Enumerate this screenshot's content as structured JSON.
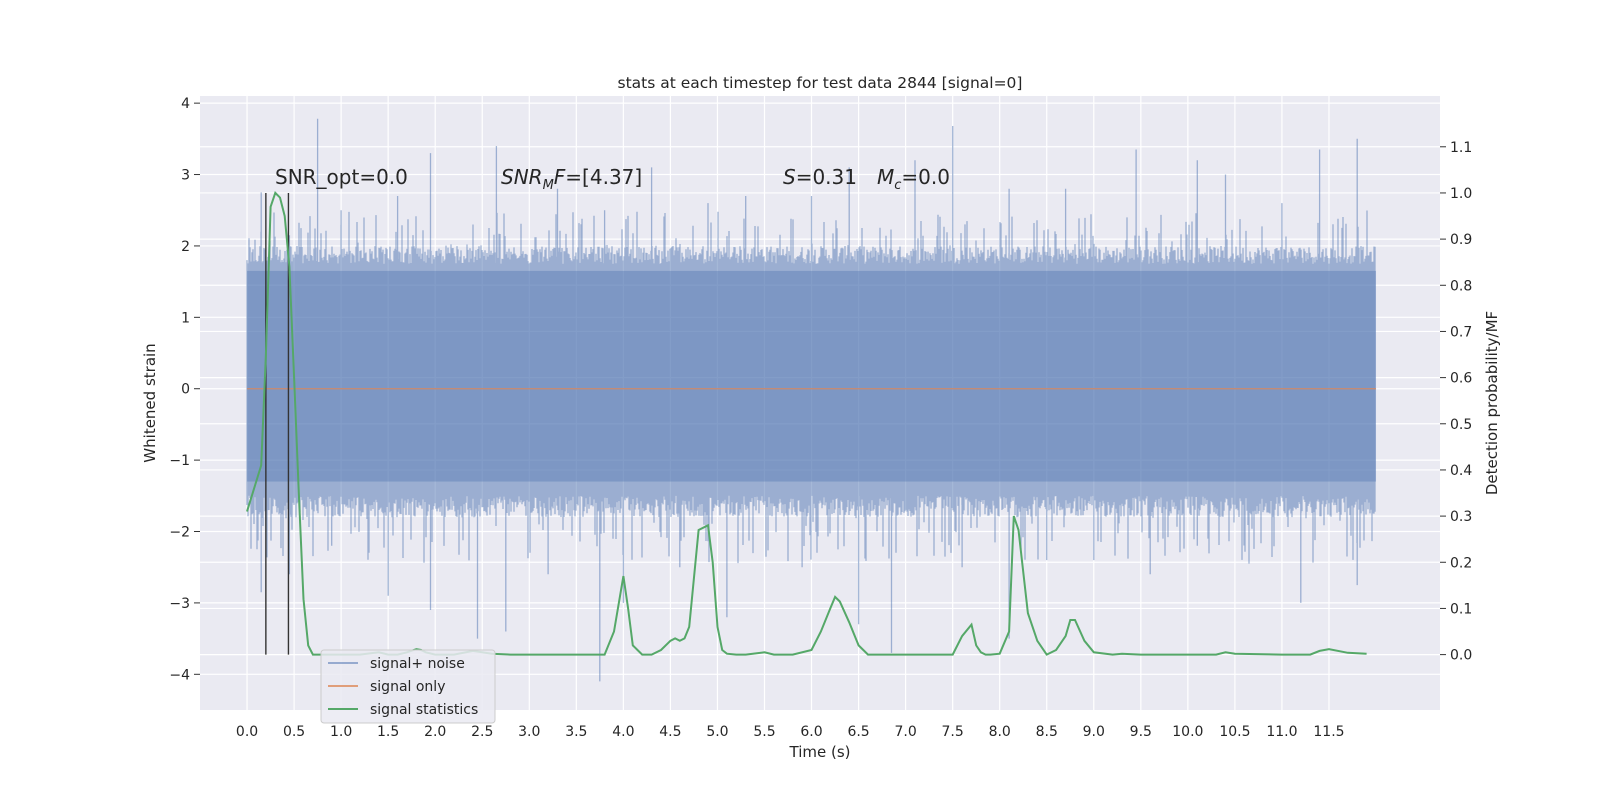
{
  "chart_data": {
    "type": "line",
    "title": "stats at each timestep for test data 2844 [signal=0]",
    "xlabel": "Time (s)",
    "ylabel": "Whitened strain",
    "y2label": "Detection probability/MF",
    "xlim": [
      -0.5,
      12.68
    ],
    "ylim": [
      -4.5,
      4.1
    ],
    "y2lim": [
      -0.12,
      1.21
    ],
    "x_ticks": [
      0.0,
      0.5,
      1.0,
      1.5,
      2.0,
      2.5,
      3.0,
      3.5,
      4.0,
      4.5,
      5.0,
      5.5,
      6.0,
      6.5,
      7.0,
      7.5,
      8.0,
      8.5,
      9.0,
      9.5,
      10.0,
      10.5,
      11.0,
      11.5
    ],
    "x_tick_labels": [
      "0.0",
      "0.5",
      "1.0",
      "1.5",
      "2.0",
      "2.5",
      "3.0",
      "3.5",
      "4.0",
      "4.5",
      "5.0",
      "5.5",
      "6.0",
      "6.5",
      "7.0",
      "7.5",
      "8.0",
      "8.5",
      "9.0",
      "9.5",
      "10.0",
      "10.5",
      "11.0",
      "11.5"
    ],
    "y_ticks": [
      -4,
      -3,
      -2,
      -1,
      0,
      1,
      2,
      3,
      4
    ],
    "y_tick_labels": [
      "−4",
      "−3",
      "−2",
      "−1",
      "0",
      "1",
      "2",
      "3",
      "4"
    ],
    "y2_ticks": [
      0.0,
      0.1,
      0.2,
      0.3,
      0.4,
      0.5,
      0.6,
      0.7,
      0.8,
      0.9,
      1.0,
      1.1
    ],
    "y2_tick_labels": [
      "0.0",
      "0.1",
      "0.2",
      "0.3",
      "0.4",
      "0.5",
      "0.6",
      "0.7",
      "0.8",
      "0.9",
      "1.0",
      "1.1"
    ],
    "grid": true,
    "legend_position": "lower-left",
    "annotations": {
      "snr_opt": "SNR_opt=0.0",
      "snr_mf_base": "SNR",
      "snr_mf_sub": "M",
      "snr_mf_f": "F",
      "snr_mf_rest": "=[4.37]",
      "s_sym": "S",
      "s_val": "=0.31",
      "mc_base": "M",
      "mc_sub": "c",
      "mc_val": "=0.0"
    },
    "series": [
      {
        "name": "signal+ noise",
        "color": "#4c72b0",
        "opacity": 0.5,
        "x_range": [
          0.0,
          12.0
        ],
        "envelope_peaks": [
          [
            0.75,
            3.78
          ],
          [
            0.15,
            2.75
          ],
          [
            0.45,
            2.15
          ],
          [
            1.0,
            2.5
          ],
          [
            1.6,
            2.7
          ],
          [
            1.95,
            3.3
          ],
          [
            2.65,
            3.4
          ],
          [
            3.3,
            2.8
          ],
          [
            3.8,
            2.5
          ],
          [
            4.3,
            3.1
          ],
          [
            4.9,
            2.6
          ],
          [
            5.3,
            2.7
          ],
          [
            6.0,
            2.7
          ],
          [
            6.4,
            3.1
          ],
          [
            7.1,
            3.2
          ],
          [
            7.5,
            3.68
          ],
          [
            8.1,
            2.8
          ],
          [
            8.7,
            2.8
          ],
          [
            9.45,
            3.35
          ],
          [
            10.1,
            3.2
          ],
          [
            10.4,
            3.0
          ],
          [
            11.0,
            2.6
          ],
          [
            11.4,
            3.35
          ],
          [
            11.8,
            3.5
          ]
        ],
        "envelope_troughs": [
          [
            0.15,
            -2.85
          ],
          [
            0.45,
            -2.6
          ],
          [
            0.9,
            -2.2
          ],
          [
            1.5,
            -2.9
          ],
          [
            1.95,
            -3.1
          ],
          [
            2.45,
            -3.5
          ],
          [
            2.75,
            -3.4
          ],
          [
            3.2,
            -2.6
          ],
          [
            3.75,
            -4.1
          ],
          [
            4.0,
            -3.0
          ],
          [
            4.6,
            -2.5
          ],
          [
            5.1,
            -3.2
          ],
          [
            5.9,
            -2.5
          ],
          [
            6.5,
            -3.3
          ],
          [
            6.85,
            -3.7
          ],
          [
            7.6,
            -2.5
          ],
          [
            8.1,
            -3.5
          ],
          [
            8.5,
            -2.4
          ],
          [
            9.0,
            -2.4
          ],
          [
            9.6,
            -2.6
          ],
          [
            10.1,
            -2.2
          ],
          [
            11.2,
            -3.0
          ],
          [
            11.8,
            -2.75
          ]
        ]
      },
      {
        "name": "signal only",
        "color": "#dd8452",
        "x": [
          0.0,
          12.0
        ],
        "y": [
          0.0,
          0.0
        ]
      },
      {
        "name": "signal statistics",
        "color": "#55a868",
        "axis": "right",
        "x": [
          0.0,
          0.15,
          0.2,
          0.25,
          0.3,
          0.35,
          0.4,
          0.45,
          0.5,
          0.55,
          0.6,
          0.65,
          0.7,
          0.8,
          1.0,
          1.2,
          1.4,
          1.5,
          1.6,
          1.7,
          1.8,
          1.85,
          1.9,
          2.0,
          2.2,
          2.4,
          2.5,
          2.6,
          2.8,
          3.0,
          3.5,
          3.8,
          3.9,
          4.0,
          4.05,
          4.1,
          4.2,
          4.3,
          4.4,
          4.5,
          4.55,
          4.6,
          4.65,
          4.7,
          4.8,
          4.9,
          4.95,
          5.0,
          5.05,
          5.1,
          5.2,
          5.3,
          5.5,
          5.6,
          5.8,
          6.0,
          6.1,
          6.2,
          6.25,
          6.3,
          6.4,
          6.5,
          6.6,
          6.8,
          7.0,
          7.5,
          7.6,
          7.7,
          7.75,
          7.8,
          7.85,
          7.9,
          8.0,
          8.1,
          8.15,
          8.2,
          8.3,
          8.4,
          8.5,
          8.6,
          8.7,
          8.75,
          8.8,
          8.9,
          9.0,
          9.2,
          9.3,
          9.5,
          10.0,
          10.3,
          10.4,
          10.5,
          11.0,
          11.3,
          11.4,
          11.5,
          11.7,
          11.9
        ],
        "y": [
          0.31,
          0.41,
          0.65,
          0.97,
          1.0,
          0.99,
          0.95,
          0.84,
          0.6,
          0.35,
          0.12,
          0.02,
          0.0,
          0.0,
          0.0,
          0.0,
          0.005,
          0.0,
          0.0,
          0.005,
          0.012,
          0.01,
          0.005,
          0.0,
          0.0,
          0.008,
          0.005,
          0.002,
          0.0,
          0.0,
          0.0,
          0.0,
          0.05,
          0.17,
          0.1,
          0.02,
          0.0,
          0.0,
          0.01,
          0.03,
          0.035,
          0.03,
          0.035,
          0.06,
          0.27,
          0.28,
          0.2,
          0.06,
          0.01,
          0.002,
          0.0,
          0.0,
          0.005,
          0.0,
          0.0,
          0.01,
          0.05,
          0.1,
          0.125,
          0.115,
          0.07,
          0.02,
          0.0,
          0.0,
          0.0,
          0.0,
          0.04,
          0.065,
          0.02,
          0.005,
          0.0,
          0.0,
          0.002,
          0.05,
          0.3,
          0.27,
          0.09,
          0.03,
          0.0,
          0.01,
          0.04,
          0.075,
          0.075,
          0.03,
          0.005,
          0.0,
          0.002,
          0.0,
          0.0,
          0.0,
          0.005,
          0.002,
          0.0,
          0.0,
          0.008,
          0.012,
          0.004,
          0.002
        ]
      }
    ],
    "vlines": {
      "color": "#333333",
      "x": [
        0.2,
        0.44
      ],
      "y_from": 0.0,
      "y_to": 1.0
    }
  }
}
